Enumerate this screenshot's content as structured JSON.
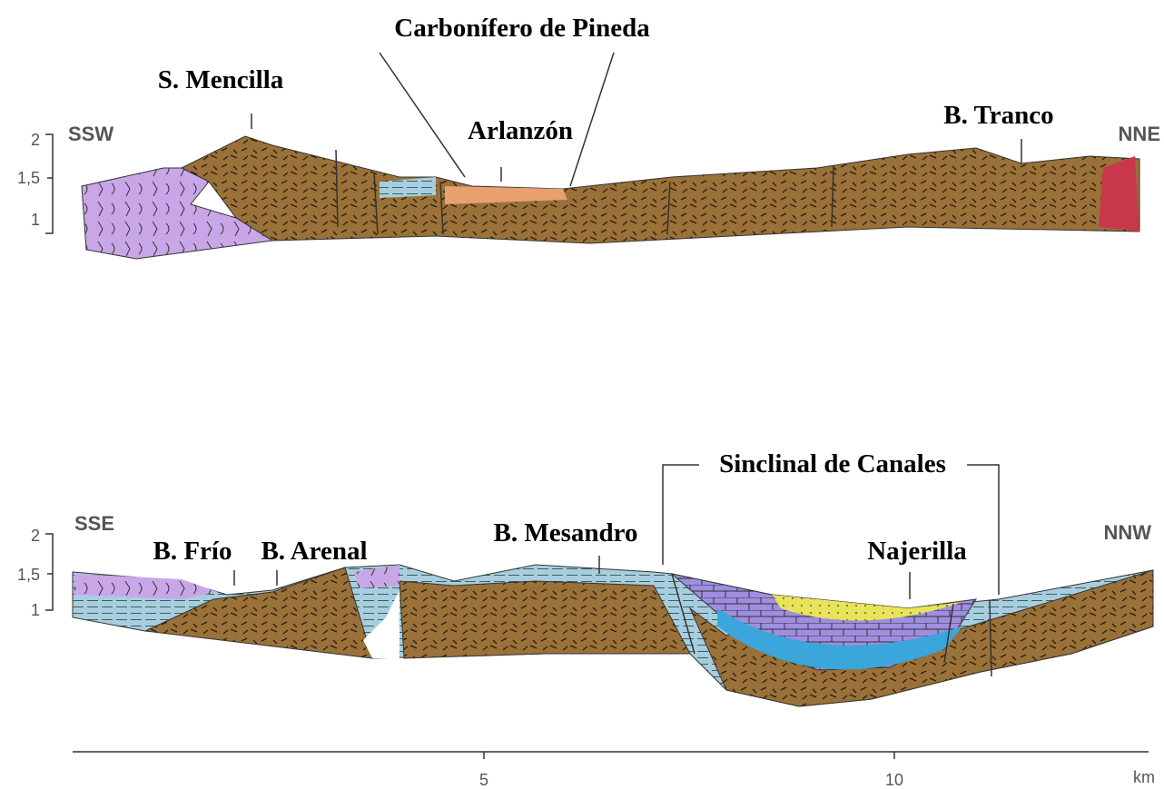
{
  "top_section": {
    "title": "Carbonífero de Pineda",
    "peak_label": "S. Mencilla",
    "town_label": "Arlanzón",
    "stream_label": "B. Tranco",
    "left_direction": "SSW",
    "right_direction": "NNE",
    "height_labels": [
      "2",
      "1,5",
      "1"
    ]
  },
  "bottom_section": {
    "stream_labels": [
      "B. Frío",
      "B. Arenal",
      "B. Mesandro"
    ],
    "structure_label": "Sinclinal de Canales",
    "river_label": "Najerilla",
    "left_direction": "SSE",
    "right_direction": "NNW",
    "height_labels": [
      "2",
      "1,5",
      "1"
    ]
  },
  "distance_scale": {
    "labels": [
      "5",
      "10"
    ],
    "unit": "km"
  }
}
